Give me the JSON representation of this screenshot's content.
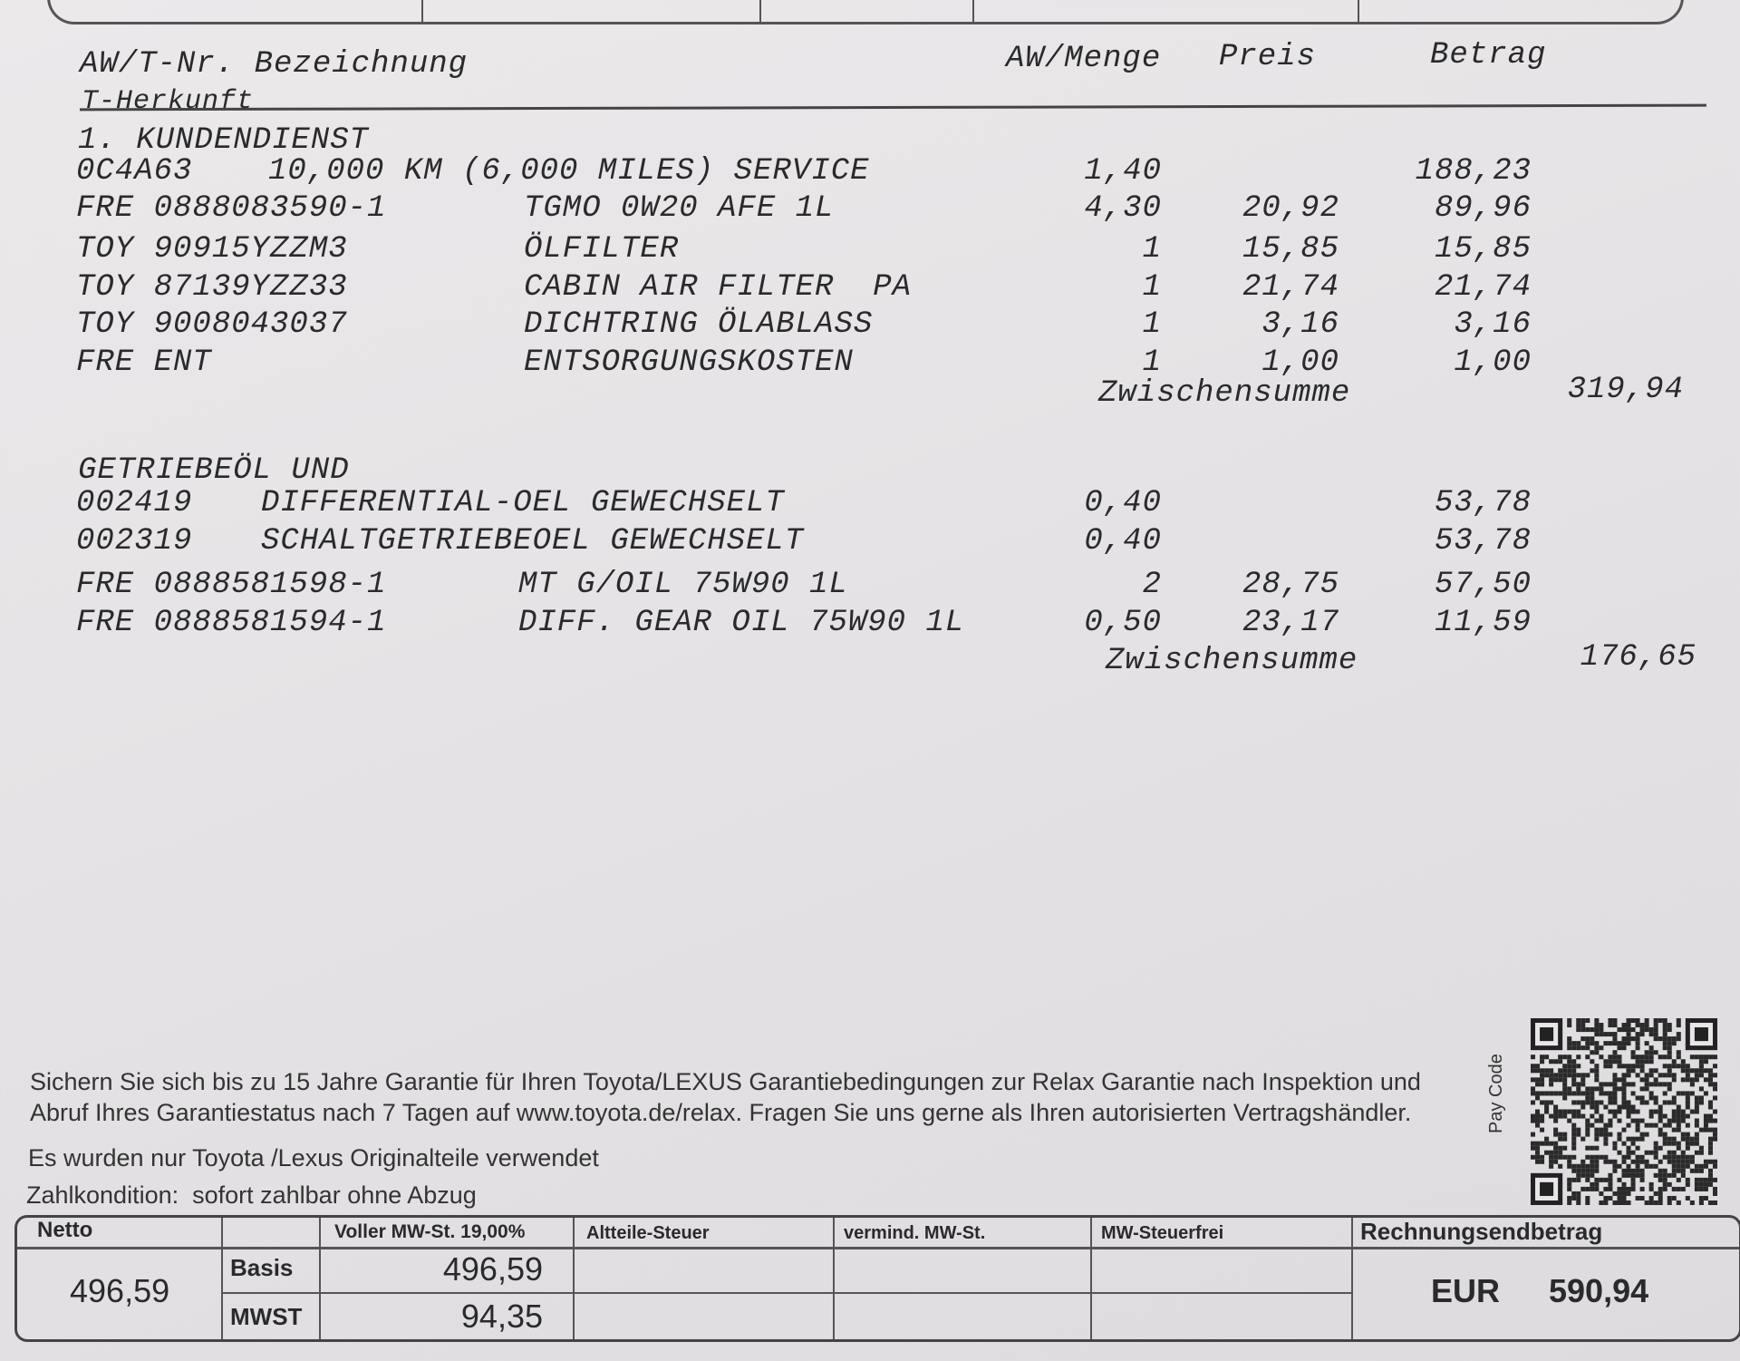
{
  "columns": {
    "code": "AW/T-Nr. Bezeichnung",
    "origin": "T-Herkunft",
    "qty": "AW/Menge",
    "price": "Preis",
    "amount": "Betrag"
  },
  "sections": [
    {
      "title": "1. KUNDENDIENST",
      "subtotal_label": "Zwischensumme",
      "subtotal": "319,94",
      "rows": [
        {
          "code": "0C4A63",
          "desc": "10,000 KM (6,000 MILES) SERVICE",
          "qty": "1,40",
          "price": "",
          "amount": "188,23"
        },
        {
          "code": "FRE 0888083590-1",
          "desc": "TGMO 0W20 AFE 1L",
          "qty": "4,30",
          "price": "20,92",
          "amount": "89,96"
        },
        {
          "code": "TOY 90915YZZM3",
          "desc": "ÖLFILTER",
          "qty": "1",
          "price": "15,85",
          "amount": "15,85"
        },
        {
          "code": "TOY 87139YZZ33",
          "desc": "CABIN AIR FILTER  PA",
          "qty": "1",
          "price": "21,74",
          "amount": "21,74"
        },
        {
          "code": "TOY 9008043037",
          "desc": "DICHTRING ÖLABLASS",
          "qty": "1",
          "price": "3,16",
          "amount": "3,16"
        },
        {
          "code": "FRE ENT",
          "desc": "ENTSORGUNGSKOSTEN",
          "qty": "1",
          "price": "1,00",
          "amount": "1,00"
        }
      ]
    },
    {
      "title": "GETRIEBEÖL UND",
      "subtotal_label": "Zwischensumme",
      "subtotal": "176,65",
      "rows": [
        {
          "code": "002419",
          "desc": "DIFFERENTIAL-OEL GEWECHSELT",
          "qty": "0,40",
          "price": "",
          "amount": "53,78"
        },
        {
          "code": "002319",
          "desc": "SCHALTGETRIEBEOEL GEWECHSELT",
          "qty": "0,40",
          "price": "",
          "amount": "53,78"
        },
        {
          "code": "FRE 0888581598-1",
          "desc": "MT G/OIL 75W90 1L",
          "qty": "2",
          "price": "28,75",
          "amount": "57,50"
        },
        {
          "code": "FRE 0888581594-1",
          "desc": "DIFF. GEAR OIL 75W90 1L",
          "qty": "0,50",
          "price": "23,17",
          "amount": "11,59"
        }
      ]
    }
  ],
  "footer": {
    "guarantee_line1": "Sichern Sie sich bis zu 15 Jahre Garantie für Ihren Toyota/LEXUS Garantiebedingungen zur Relax Garantie nach Inspektion und",
    "guarantee_line2": "Abruf Ihres Garantiestatus nach 7 Tagen auf www.toyota.de/relax. Fragen Sie uns gerne als Ihren autorisierten Vertragshändler.",
    "parts_note": "Es wurden nur Toyota /Lexus Originalteile verwendet",
    "payment_terms": "Zahlkondition:  sofort zahlbar ohne Abzug",
    "pay_code_label": "Pay Code"
  },
  "totals": {
    "netto_label": "Netto",
    "netto": "496,59",
    "vat_label": "Voller MW-St. 19,00%",
    "basis_label": "Basis",
    "basis": "496,59",
    "mwst_label": "MWST",
    "mwst": "94,35",
    "altteile_label": "Altteile-Steuer",
    "vermind_label": "vermind. MW-St.",
    "steuerfrei_label": "MW-Steuerfrei",
    "end_label": "Rechnungsendbetrag",
    "currency": "EUR",
    "end_amount": "590,94"
  }
}
